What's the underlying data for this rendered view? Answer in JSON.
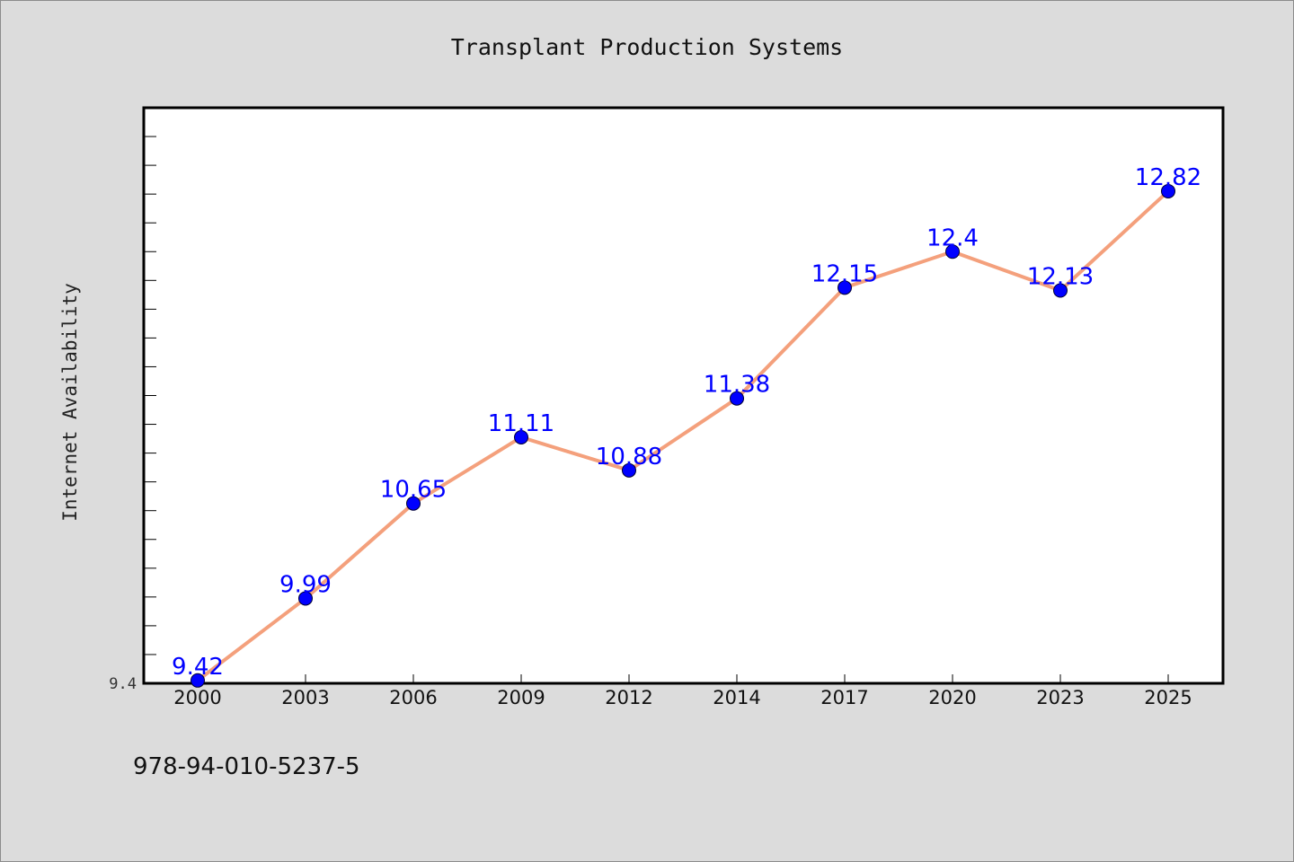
{
  "chart_data": {
    "type": "line",
    "title": "Transplant Production Systems",
    "xlabel": "",
    "ylabel": "Internet Availability",
    "categories": [
      "2000",
      "2003",
      "2006",
      "2009",
      "2012",
      "2014",
      "2017",
      "2020",
      "2023",
      "2025"
    ],
    "series": [
      {
        "values": [
          9.42,
          9.99,
          10.65,
          11.11,
          10.88,
          11.38,
          12.15,
          12.4,
          12.13,
          12.82
        ]
      }
    ],
    "ylim": [
      9.4,
      13.4
    ],
    "ytick_labels": [
      "9.4"
    ],
    "grid": false,
    "legend": "none",
    "colors": {
      "line": "#f4a07c",
      "marker": "#0000ff",
      "data_label": "#0000ff",
      "background": "#dcdcdc",
      "plot_background": "#ffffff"
    }
  },
  "footer": {
    "code": "978-94-010-5237-5"
  }
}
